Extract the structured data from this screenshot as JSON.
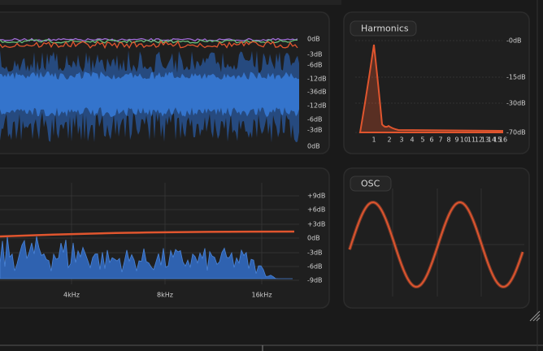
{
  "meter": {
    "scale": [
      "0dB",
      "-3dB",
      "-6dB",
      "-12dB",
      "-36dB",
      "-12dB",
      "-6dB",
      "-3dB",
      "0dB"
    ]
  },
  "harmonics": {
    "title": "Harmonics",
    "scale": [
      "-0dB",
      "-15dB",
      "-30dB",
      "-70dB"
    ],
    "orders": [
      "1",
      "2",
      "3",
      "4",
      "5",
      "6",
      "7",
      "8",
      "9",
      "10",
      "11",
      "12",
      "13",
      "14",
      "15",
      "16"
    ]
  },
  "eq": {
    "scale": [
      "+9dB",
      "+6dB",
      "+3dB",
      "0dB",
      "-3dB",
      "-6dB",
      "-9dB"
    ],
    "frequencies": [
      "4kHz",
      "8kHz",
      "16kHz"
    ]
  },
  "osc": {
    "title": "OSC"
  }
}
